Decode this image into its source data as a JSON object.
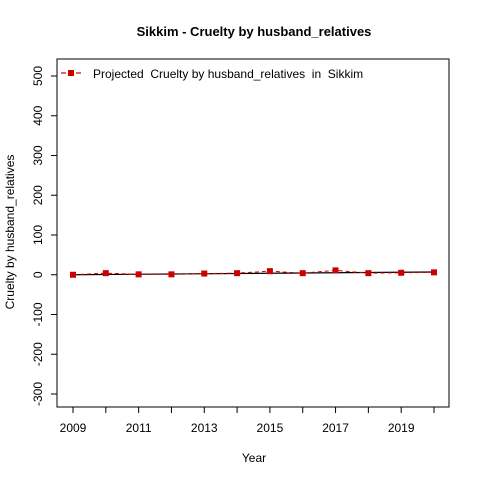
{
  "chart_data": {
    "type": "line",
    "title": "Sikkim  -  Cruelty by husband_relatives",
    "xlabel": "Year",
    "ylabel": "Cruelty by husband_relatives",
    "xlim": [
      2009,
      2020
    ],
    "ylim": [
      -300,
      500
    ],
    "x_ticks": [
      2009,
      2010,
      2011,
      2012,
      2013,
      2014,
      2015,
      2016,
      2017,
      2018,
      2019,
      2020
    ],
    "x_tick_labels": [
      "2009",
      "",
      "2011",
      "",
      "2013",
      "",
      "2015",
      "",
      "2017",
      "",
      "2019",
      ""
    ],
    "y_ticks": [
      -300,
      -200,
      -100,
      0,
      100,
      200,
      300,
      400,
      500
    ],
    "y_tick_labels": [
      "-300",
      "-200",
      "-100",
      "0",
      "100",
      "200",
      "300",
      "400",
      "500"
    ],
    "legend_position": "top-left",
    "grid": false,
    "series": [
      {
        "name": "Projected  Cruelty by husband_relatives  in  Sikkim",
        "style": "dashed-with-square-markers",
        "color": "#cc0000",
        "x": [
          2009,
          2010,
          2011,
          2012,
          2013,
          2014,
          2015,
          2016,
          2017,
          2018,
          2019,
          2020
        ],
        "y": [
          0,
          4,
          1,
          1,
          3,
          4,
          9,
          4,
          11,
          4,
          5,
          6
        ]
      }
    ],
    "trend_line": {
      "color": "#000000",
      "x": [
        2009,
        2020
      ],
      "y": [
        0,
        7
      ]
    }
  }
}
